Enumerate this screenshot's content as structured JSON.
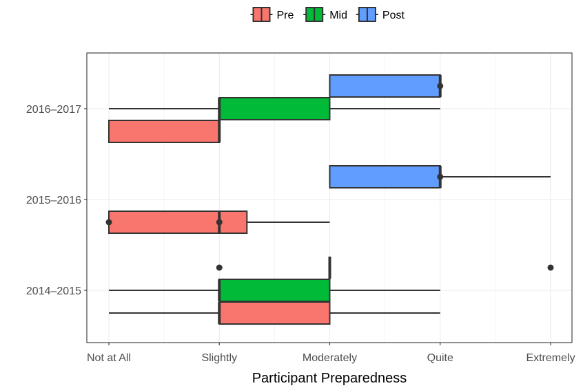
{
  "chart_data": {
    "type": "boxplot",
    "orientation": "horizontal",
    "xlabel": "Participant Preparedness",
    "ylabel": "",
    "x_scale": {
      "min": 1,
      "max": 5,
      "ticks": [
        1,
        2,
        3,
        4,
        5
      ]
    },
    "x_tick_labels": [
      "Not at All",
      "Slightly",
      "Moderately",
      "Quite",
      "Extremely"
    ],
    "categories": [
      "2014–2015",
      "2015–2016",
      "2016–2017"
    ],
    "grid": true,
    "legend": {
      "position": "top",
      "entries": [
        "Pre",
        "Mid",
        "Post"
      ]
    },
    "colors": {
      "Pre": "#F8766D",
      "Mid": "#00BA38",
      "Post": "#619CFF"
    },
    "series": [
      {
        "name": "Pre",
        "boxes": [
          {
            "category": "2014–2015",
            "min": 1,
            "q1": 2,
            "median": 2,
            "q3": 3,
            "max": 4,
            "outliers": []
          },
          {
            "category": "2015–2016",
            "min": 1,
            "q1": 1,
            "median": 2,
            "q3": 2.25,
            "max": 3,
            "outliers": [
              1,
              2
            ]
          },
          {
            "category": "2016–2017",
            "min": 1,
            "q1": 1,
            "median": 2,
            "q3": 2,
            "max": 2,
            "outliers": []
          }
        ]
      },
      {
        "name": "Mid",
        "boxes": [
          {
            "category": "2014–2015",
            "min": 1,
            "q1": 2,
            "median": 2,
            "q3": 3,
            "max": 4,
            "outliers": []
          },
          {
            "category": "2016–2017",
            "min": 1,
            "q1": 2,
            "median": 2,
            "q3": 3,
            "max": 4,
            "outliers": []
          }
        ]
      },
      {
        "name": "Post",
        "boxes": [
          {
            "category": "2014–2015",
            "min": 3,
            "q1": 3,
            "median": 3,
            "q3": 3,
            "max": 3,
            "outliers": [
              2,
              5
            ]
          },
          {
            "category": "2015–2016",
            "min": 3,
            "q1": 3,
            "median": 4,
            "q3": 4,
            "max": 5,
            "outliers": [
              4
            ]
          },
          {
            "category": "2016–2017",
            "min": 3,
            "q1": 3,
            "median": 4,
            "q3": 4,
            "max": 4,
            "outliers": [
              4
            ]
          }
        ]
      }
    ]
  }
}
